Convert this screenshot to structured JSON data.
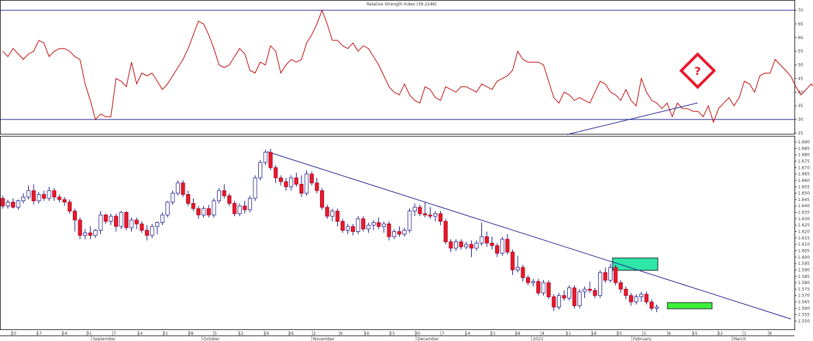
{
  "chart_data": [
    {
      "type": "line",
      "title": "Relative Strength Index (39.2246)",
      "ylim": [
        22,
        72
      ],
      "yticks": [
        25,
        30,
        35,
        40,
        45,
        50,
        55,
        60,
        65,
        70
      ],
      "reference_lines": [
        30,
        70
      ],
      "line_color": "#c00000",
      "series": [
        {
          "values": [
            55,
            53,
            56,
            54,
            52,
            54,
            55,
            59,
            58,
            53,
            55,
            56,
            56,
            55,
            53,
            52,
            43,
            37,
            30,
            32,
            31,
            31,
            45,
            44,
            42,
            51,
            43,
            47,
            46,
            47,
            44,
            41,
            43,
            46,
            49,
            52,
            56,
            61,
            66,
            65,
            61,
            56,
            50,
            49,
            50,
            53,
            56,
            54,
            48,
            47,
            51,
            50,
            57,
            55,
            47,
            50,
            52,
            51,
            52,
            58,
            61,
            65,
            70,
            65,
            59,
            59,
            57,
            56,
            58,
            55,
            57,
            56,
            53,
            50,
            46,
            42,
            40,
            39,
            43,
            39,
            37,
            36,
            42,
            41,
            38,
            37,
            42,
            41,
            40,
            42,
            42,
            41,
            40,
            43,
            42,
            41,
            44,
            45,
            46,
            48,
            55,
            52,
            51,
            51,
            51,
            50,
            44,
            38,
            36,
            40,
            39,
            37,
            38,
            37,
            36,
            40,
            44,
            43,
            40,
            39,
            37,
            41,
            37,
            35,
            45,
            40,
            37,
            36,
            34,
            36,
            31,
            36,
            34,
            34,
            33,
            33,
            31,
            35,
            29,
            34,
            36,
            38,
            35,
            38,
            44,
            43,
            40,
            46,
            47,
            47,
            52,
            50,
            48,
            46,
            42,
            39,
            41,
            43,
            41,
            38,
            37,
            36,
            38,
            39
          ]
        }
      ],
      "annotations": [
        "?"
      ]
    },
    {
      "type": "candlestick",
      "ylim": [
        1.547,
        1.69
      ],
      "yticks": [
        1.55,
        1.555,
        1.56,
        1.565,
        1.57,
        1.575,
        1.58,
        1.585,
        1.59,
        1.595,
        1.6,
        1.605,
        1.61,
        1.615,
        1.62,
        1.625,
        1.63,
        1.635,
        1.64,
        1.645,
        1.65,
        1.655,
        1.66,
        1.665,
        1.67,
        1.675,
        1.68,
        1.685,
        1.69
      ],
      "up_color": "#ffffff",
      "down_color": "#e8192c",
      "x_day_labels": [
        "10",
        "17",
        "24",
        "31",
        "7",
        "14",
        "21",
        "28",
        "5",
        "12",
        "19",
        "26",
        "2",
        "9",
        "16",
        "23",
        "30",
        "7",
        "14",
        "21",
        "28",
        "4",
        "11",
        "18",
        "25",
        "1",
        "8",
        "15",
        "22",
        "1",
        "8",
        "15"
      ],
      "x_month_labels": [
        "September",
        "October",
        "November",
        "December",
        "2021",
        "February",
        "March"
      ],
      "ohlc": [
        [
          1.646,
          1.648,
          1.638,
          1.64
        ],
        [
          1.64,
          1.645,
          1.638,
          1.643
        ],
        [
          1.643,
          1.646,
          1.638,
          1.639
        ],
        [
          1.639,
          1.645,
          1.637,
          1.644
        ],
        [
          1.644,
          1.65,
          1.642,
          1.647
        ],
        [
          1.647,
          1.656,
          1.645,
          1.652
        ],
        [
          1.652,
          1.657,
          1.641,
          1.644
        ],
        [
          1.644,
          1.651,
          1.642,
          1.649
        ],
        [
          1.649,
          1.652,
          1.644,
          1.646
        ],
        [
          1.646,
          1.655,
          1.644,
          1.652
        ],
        [
          1.652,
          1.654,
          1.644,
          1.647
        ],
        [
          1.647,
          1.649,
          1.643,
          1.645
        ],
        [
          1.645,
          1.647,
          1.64,
          1.643
        ],
        [
          1.643,
          1.645,
          1.634,
          1.636
        ],
        [
          1.636,
          1.638,
          1.62,
          1.629
        ],
        [
          1.629,
          1.631,
          1.614,
          1.617
        ],
        [
          1.617,
          1.622,
          1.614,
          1.619
        ],
        [
          1.619,
          1.624,
          1.614,
          1.617
        ],
        [
          1.617,
          1.622,
          1.615,
          1.621
        ],
        [
          1.621,
          1.636,
          1.618,
          1.633
        ],
        [
          1.633,
          1.634,
          1.626,
          1.628
        ],
        [
          1.628,
          1.634,
          1.625,
          1.632
        ],
        [
          1.632,
          1.634,
          1.62,
          1.624
        ],
        [
          1.624,
          1.636,
          1.622,
          1.635
        ],
        [
          1.635,
          1.636,
          1.621,
          1.623
        ],
        [
          1.623,
          1.631,
          1.62,
          1.629
        ],
        [
          1.629,
          1.631,
          1.622,
          1.626
        ],
        [
          1.626,
          1.628,
          1.619,
          1.621
        ],
        [
          1.621,
          1.625,
          1.613,
          1.617
        ],
        [
          1.617,
          1.626,
          1.615,
          1.624
        ],
        [
          1.624,
          1.628,
          1.618,
          1.627
        ],
        [
          1.627,
          1.635,
          1.625,
          1.633
        ],
        [
          1.633,
          1.644,
          1.631,
          1.643
        ],
        [
          1.643,
          1.652,
          1.641,
          1.65
        ],
        [
          1.65,
          1.66,
          1.648,
          1.658
        ],
        [
          1.658,
          1.66,
          1.647,
          1.649
        ],
        [
          1.649,
          1.652,
          1.64,
          1.642
        ],
        [
          1.642,
          1.646,
          1.636,
          1.638
        ],
        [
          1.638,
          1.64,
          1.63,
          1.633
        ],
        [
          1.633,
          1.64,
          1.631,
          1.638
        ],
        [
          1.638,
          1.641,
          1.631,
          1.633
        ],
        [
          1.633,
          1.646,
          1.631,
          1.644
        ],
        [
          1.644,
          1.654,
          1.642,
          1.652
        ],
        [
          1.652,
          1.657,
          1.646,
          1.648
        ],
        [
          1.648,
          1.65,
          1.64,
          1.642
        ],
        [
          1.642,
          1.644,
          1.632,
          1.634
        ],
        [
          1.634,
          1.642,
          1.632,
          1.64
        ],
        [
          1.64,
          1.644,
          1.634,
          1.637
        ],
        [
          1.637,
          1.648,
          1.635,
          1.646
        ],
        [
          1.646,
          1.664,
          1.644,
          1.662
        ],
        [
          1.662,
          1.676,
          1.66,
          1.674
        ],
        [
          1.674,
          1.684,
          1.672,
          1.682
        ],
        [
          1.682,
          1.685,
          1.668,
          1.67
        ],
        [
          1.67,
          1.672,
          1.658,
          1.662
        ],
        [
          1.662,
          1.664,
          1.656,
          1.659
        ],
        [
          1.659,
          1.662,
          1.652,
          1.655
        ],
        [
          1.655,
          1.664,
          1.652,
          1.662
        ],
        [
          1.662,
          1.666,
          1.655,
          1.657
        ],
        [
          1.657,
          1.664,
          1.647,
          1.65
        ],
        [
          1.65,
          1.668,
          1.648,
          1.665
        ],
        [
          1.665,
          1.667,
          1.656,
          1.658
        ],
        [
          1.658,
          1.662,
          1.65,
          1.652
        ],
        [
          1.652,
          1.654,
          1.637,
          1.639
        ],
        [
          1.639,
          1.641,
          1.63,
          1.632
        ],
        [
          1.632,
          1.638,
          1.628,
          1.636
        ],
        [
          1.636,
          1.638,
          1.624,
          1.628
        ],
        [
          1.628,
          1.63,
          1.619,
          1.621
        ],
        [
          1.621,
          1.626,
          1.618,
          1.624
        ],
        [
          1.624,
          1.626,
          1.617,
          1.62
        ],
        [
          1.62,
          1.632,
          1.618,
          1.63
        ],
        [
          1.63,
          1.632,
          1.62,
          1.622
        ],
        [
          1.622,
          1.627,
          1.619,
          1.625
        ],
        [
          1.625,
          1.629,
          1.621,
          1.627
        ],
        [
          1.627,
          1.631,
          1.622,
          1.624
        ],
        [
          1.624,
          1.628,
          1.619,
          1.626
        ],
        [
          1.626,
          1.628,
          1.613,
          1.616
        ],
        [
          1.616,
          1.622,
          1.614,
          1.62
        ],
        [
          1.62,
          1.624,
          1.616,
          1.618
        ],
        [
          1.618,
          1.623,
          1.616,
          1.621
        ],
        [
          1.621,
          1.638,
          1.619,
          1.636
        ],
        [
          1.636,
          1.642,
          1.632,
          1.639
        ],
        [
          1.639,
          1.641,
          1.632,
          1.634
        ],
        [
          1.634,
          1.643,
          1.631,
          1.633
        ],
        [
          1.633,
          1.639,
          1.63,
          1.632
        ],
        [
          1.632,
          1.636,
          1.628,
          1.634
        ],
        [
          1.634,
          1.636,
          1.625,
          1.628
        ],
        [
          1.628,
          1.63,
          1.61,
          1.612
        ],
        [
          1.612,
          1.614,
          1.604,
          1.607
        ],
        [
          1.607,
          1.614,
          1.605,
          1.612
        ],
        [
          1.612,
          1.614,
          1.606,
          1.608
        ],
        [
          1.608,
          1.612,
          1.606,
          1.61
        ],
        [
          1.61,
          1.613,
          1.6,
          1.607
        ],
        [
          1.607,
          1.613,
          1.605,
          1.611
        ],
        [
          1.611,
          1.627,
          1.609,
          1.616
        ],
        [
          1.616,
          1.62,
          1.608,
          1.611
        ],
        [
          1.611,
          1.616,
          1.606,
          1.609
        ],
        [
          1.609,
          1.611,
          1.6,
          1.603
        ],
        [
          1.603,
          1.616,
          1.601,
          1.614
        ],
        [
          1.614,
          1.618,
          1.602,
          1.604
        ],
        [
          1.604,
          1.606,
          1.586,
          1.59
        ],
        [
          1.59,
          1.601,
          1.588,
          1.592
        ],
        [
          1.592,
          1.594,
          1.581,
          1.584
        ],
        [
          1.584,
          1.586,
          1.578,
          1.58
        ],
        [
          1.58,
          1.583,
          1.577,
          1.581
        ],
        [
          1.581,
          1.583,
          1.57,
          1.572
        ],
        [
          1.572,
          1.582,
          1.57,
          1.58
        ],
        [
          1.58,
          1.582,
          1.567,
          1.569
        ],
        [
          1.569,
          1.571,
          1.558,
          1.561
        ],
        [
          1.561,
          1.572,
          1.559,
          1.57
        ],
        [
          1.57,
          1.574,
          1.566,
          1.568
        ],
        [
          1.568,
          1.578,
          1.566,
          1.576
        ],
        [
          1.576,
          1.578,
          1.56,
          1.562
        ],
        [
          1.562,
          1.575,
          1.56,
          1.573
        ],
        [
          1.573,
          1.577,
          1.568,
          1.575
        ],
        [
          1.575,
          1.581,
          1.572,
          1.574
        ],
        [
          1.574,
          1.576,
          1.568,
          1.57
        ],
        [
          1.57,
          1.59,
          1.568,
          1.588
        ],
        [
          1.588,
          1.592,
          1.58,
          1.582
        ],
        [
          1.582,
          1.595,
          1.58,
          1.592
        ],
        [
          1.592,
          1.594,
          1.578,
          1.58
        ],
        [
          1.58,
          1.582,
          1.572,
          1.575
        ],
        [
          1.575,
          1.577,
          1.567,
          1.57
        ],
        [
          1.57,
          1.572,
          1.562,
          1.565
        ],
        [
          1.565,
          1.571,
          1.563,
          1.569
        ],
        [
          1.569,
          1.573,
          1.565,
          1.571
        ],
        [
          1.571,
          1.573,
          1.563,
          1.565
        ],
        [
          1.565,
          1.567,
          1.558,
          1.56
        ],
        [
          1.56,
          1.563,
          1.557,
          1.561
        ]
      ],
      "trendlines": [
        "descending resistance line",
        "RSI ascending support line"
      ],
      "highlight_zones": [
        "resistance box",
        "current price box"
      ]
    }
  ]
}
